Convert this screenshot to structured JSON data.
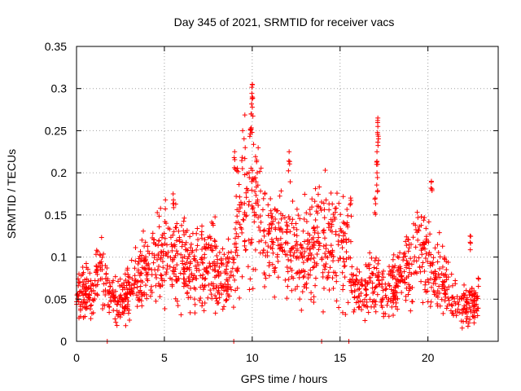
{
  "chart_data": {
    "type": "scatter",
    "title": "Day 345 of 2021, SRMTID for receiver vacs",
    "xlabel": "GPS time / hours",
    "ylabel": "SRMTID / TECUs",
    "xlim": [
      0,
      24
    ],
    "ylim": [
      0,
      0.35
    ],
    "x_ticks": [
      0,
      5,
      10,
      15,
      20
    ],
    "x_tick_labels": [
      "0",
      "5",
      "10",
      "15",
      "20"
    ],
    "y_ticks": [
      0,
      0.05,
      0.1,
      0.15,
      0.2,
      0.25,
      0.3,
      0.35
    ],
    "y_tick_labels": [
      "0",
      "0.05",
      "0.1",
      "0.15",
      "0.2",
      "0.25",
      "0.3",
      "0.35"
    ],
    "grid": true,
    "marker": "+",
    "series_color": "#ff0000",
    "series": [
      {
        "name": "SRMTID",
        "trend": [
          [
            0.0,
            0.06
          ],
          [
            0.5,
            0.055
          ],
          [
            1.0,
            0.06
          ],
          [
            1.2,
            0.085
          ],
          [
            1.5,
            0.08
          ],
          [
            1.8,
            0.05
          ],
          [
            2.5,
            0.045
          ],
          [
            3.0,
            0.06
          ],
          [
            3.5,
            0.075
          ],
          [
            4.0,
            0.085
          ],
          [
            4.5,
            0.1
          ],
          [
            5.0,
            0.11
          ],
          [
            5.5,
            0.1
          ],
          [
            6.0,
            0.095
          ],
          [
            6.5,
            0.08
          ],
          [
            7.0,
            0.085
          ],
          [
            7.5,
            0.09
          ],
          [
            8.0,
            0.085
          ],
          [
            8.5,
            0.07
          ],
          [
            9.0,
            0.11
          ],
          [
            9.3,
            0.15
          ],
          [
            9.7,
            0.17
          ],
          [
            10.0,
            0.18
          ],
          [
            10.3,
            0.16
          ],
          [
            10.8,
            0.12
          ],
          [
            11.3,
            0.11
          ],
          [
            11.8,
            0.12
          ],
          [
            12.3,
            0.11
          ],
          [
            12.8,
            0.1
          ],
          [
            13.3,
            0.11
          ],
          [
            13.8,
            0.13
          ],
          [
            14.3,
            0.12
          ],
          [
            14.8,
            0.11
          ],
          [
            15.3,
            0.12
          ],
          [
            15.5,
            0.11
          ],
          [
            15.7,
            0.06
          ],
          [
            16.5,
            0.06
          ],
          [
            17.0,
            0.07
          ],
          [
            17.5,
            0.06
          ],
          [
            18.0,
            0.075
          ],
          [
            18.5,
            0.08
          ],
          [
            19.0,
            0.09
          ],
          [
            19.5,
            0.11
          ],
          [
            20.0,
            0.09
          ],
          [
            20.5,
            0.08
          ],
          [
            21.0,
            0.07
          ],
          [
            21.5,
            0.05
          ],
          [
            22.0,
            0.04
          ],
          [
            22.5,
            0.045
          ],
          [
            22.9,
            0.05
          ]
        ],
        "spikes": [
          {
            "x": 10.0,
            "y": 0.305
          },
          {
            "x": 10.0,
            "y": 0.29
          },
          {
            "x": 9.95,
            "y": 0.27
          },
          {
            "x": 9.9,
            "y": 0.252
          },
          {
            "x": 9.0,
            "y": 0.225
          },
          {
            "x": 12.1,
            "y": 0.225
          },
          {
            "x": 17.15,
            "y": 0.265
          },
          {
            "x": 17.15,
            "y": 0.255
          },
          {
            "x": 17.1,
            "y": 0.225
          },
          {
            "x": 17.1,
            "y": 0.2
          },
          {
            "x": 17.0,
            "y": 0.17
          },
          {
            "x": 20.2,
            "y": 0.19
          },
          {
            "x": 5.5,
            "y": 0.175
          },
          {
            "x": 15.6,
            "y": 0.17
          },
          {
            "x": 22.4,
            "y": 0.125
          }
        ],
        "zero_points": [
          1.75,
          8.95,
          13.95,
          15.5
        ]
      }
    ]
  }
}
